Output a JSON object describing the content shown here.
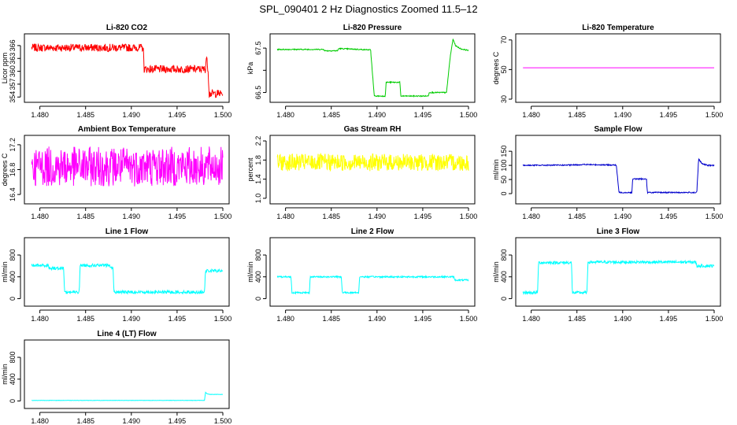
{
  "figure_title": "SPL_090401  2 Hz Diagnostics Zoomed 11.5–12",
  "chart_data": [
    {
      "type": "line",
      "title": "Li-820 CO2",
      "ylabel": "Licor ppm",
      "color": "#ff0000",
      "xlim": [
        1.479,
        1.5
      ],
      "ylim": [
        353.5,
        368
      ],
      "xticks": [
        1.48,
        1.485,
        1.49,
        1.495,
        1.5
      ],
      "xtick_labels": [
        "1.480",
        "1.485",
        "1.490",
        "1.495",
        "1.500"
      ],
      "yticks": [
        354,
        357,
        360,
        363,
        366
      ],
      "ytick_labels": [
        "354",
        "357",
        "360",
        "363",
        "366"
      ],
      "x": [
        1.4791,
        1.4913,
        1.4914,
        1.4981,
        1.4982,
        1.4984,
        1.4985,
        1.5
      ],
      "y": [
        365.5,
        365.5,
        360.5,
        360.5,
        363.5,
        360,
        354.8,
        354.8
      ],
      "noise": 0.9
    },
    {
      "type": "line",
      "title": "Li-820 Pressure",
      "ylabel": "kPa",
      "color": "#00cc00",
      "xlim": [
        1.479,
        1.5
      ],
      "ylim": [
        66.35,
        67.75
      ],
      "xticks": [
        1.48,
        1.485,
        1.49,
        1.495,
        1.5
      ],
      "xtick_labels": [
        "1.480",
        "1.485",
        "1.490",
        "1.495",
        "1.500"
      ],
      "yticks": [
        66.5,
        67.0,
        67.5
      ],
      "ytick_labels": [
        "66.5",
        "",
        "67.5"
      ],
      "x": [
        1.4791,
        1.4842,
        1.4843,
        1.4857,
        1.4858,
        1.4893,
        1.4897,
        1.4909,
        1.491,
        1.4925,
        1.4926,
        1.4956,
        1.4957,
        1.4976,
        1.498,
        1.4983,
        1.4986,
        1.4992,
        1.5
      ],
      "y": [
        67.47,
        67.47,
        67.44,
        67.44,
        67.49,
        67.46,
        66.42,
        66.42,
        66.73,
        66.73,
        66.42,
        66.42,
        66.5,
        66.5,
        67.3,
        67.7,
        67.55,
        67.48,
        67.45
      ],
      "noise": 0.012
    },
    {
      "type": "line",
      "title": "Li-820 Temperature",
      "ylabel": "degrees C",
      "color": "#ff00ff",
      "xlim": [
        1.479,
        1.5
      ],
      "ylim": [
        30,
        72
      ],
      "xticks": [
        1.48,
        1.485,
        1.49,
        1.495,
        1.5
      ],
      "xtick_labels": [
        "1.480",
        "1.485",
        "1.490",
        "1.495",
        "1.500"
      ],
      "yticks": [
        30,
        50,
        70
      ],
      "ytick_labels": [
        "30",
        "50",
        "70"
      ],
      "x": [
        1.4791,
        1.5
      ],
      "y": [
        51.2,
        51.2
      ],
      "noise": 0.0
    },
    {
      "type": "line",
      "title": "Ambient Box Temperature",
      "ylabel": "degrees C",
      "color": "#ff00ff",
      "xlim": [
        1.479,
        1.5
      ],
      "ylim": [
        16.3,
        17.3
      ],
      "xticks": [
        1.48,
        1.485,
        1.49,
        1.495,
        1.5
      ],
      "xtick_labels": [
        "1.480",
        "1.485",
        "1.490",
        "1.495",
        "1.500"
      ],
      "yticks": [
        16.4,
        16.8,
        17.2
      ],
      "ytick_labels": [
        "16.4",
        "16.8",
        "17.2"
      ],
      "x": [
        1.4791,
        1.5
      ],
      "y": [
        16.85,
        16.85
      ],
      "noise": 0.32
    },
    {
      "type": "line",
      "title": "Gas Stream RH",
      "ylabel": "percent",
      "color": "#ffff00",
      "xlim": [
        1.479,
        1.5
      ],
      "ylim": [
        0.95,
        2.25
      ],
      "xticks": [
        1.48,
        1.485,
        1.49,
        1.495,
        1.5
      ],
      "xtick_labels": [
        "1.480",
        "1.485",
        "1.490",
        "1.495",
        "1.500"
      ],
      "yticks": [
        1.0,
        1.4,
        1.8,
        2.2
      ],
      "ytick_labels": [
        "1.0",
        "1.4",
        "1.8",
        "2.2"
      ],
      "x": [
        1.4791,
        1.5
      ],
      "y": [
        1.75,
        1.75
      ],
      "noise": 0.18
    },
    {
      "type": "line",
      "title": "Sample Flow",
      "ylabel": "ml/min",
      "color": "#0000cc",
      "xlim": [
        1.479,
        1.5
      ],
      "ylim": [
        -25,
        195
      ],
      "xticks": [
        1.48,
        1.485,
        1.49,
        1.495,
        1.5
      ],
      "xtick_labels": [
        "1.480",
        "1.485",
        "1.490",
        "1.495",
        "1.500"
      ],
      "yticks": [
        0,
        50,
        100,
        150
      ],
      "ytick_labels": [
        "0",
        "50",
        "100",
        "150"
      ],
      "x": [
        1.4791,
        1.4842,
        1.4858,
        1.4893,
        1.4896,
        1.491,
        1.4911,
        1.4926,
        1.4927,
        1.4981,
        1.4983,
        1.4987,
        1.4993,
        1.5
      ],
      "y": [
        100,
        101,
        103,
        101,
        4,
        4,
        52,
        52,
        4,
        4,
        122,
        105,
        100,
        100
      ],
      "noise": 2
    },
    {
      "type": "line",
      "title": "Line 1 Flow",
      "ylabel": "ml/min",
      "color": "#00ffff",
      "xlim": [
        1.479,
        1.5
      ],
      "ylim": [
        -80,
        1060
      ],
      "xticks": [
        1.48,
        1.485,
        1.49,
        1.495,
        1.5
      ],
      "xtick_labels": [
        "1.480",
        "1.485",
        "1.490",
        "1.495",
        "1.500"
      ],
      "yticks": [
        0,
        400,
        800
      ],
      "ytick_labels": [
        "0",
        "400",
        "800"
      ],
      "x": [
        1.4791,
        1.4809,
        1.481,
        1.4826,
        1.4827,
        1.4843,
        1.4844,
        1.4876,
        1.4877,
        1.488,
        1.4881,
        1.498,
        1.4981,
        1.5
      ],
      "y": [
        610,
        610,
        560,
        560,
        120,
        120,
        610,
        610,
        570,
        570,
        120,
        120,
        510,
        510
      ],
      "noise": 28
    },
    {
      "type": "line",
      "title": "Line 2 Flow",
      "ylabel": "ml/min",
      "color": "#00ffff",
      "xlim": [
        1.479,
        1.5
      ],
      "ylim": [
        -80,
        1060
      ],
      "xticks": [
        1.48,
        1.485,
        1.49,
        1.495,
        1.5
      ],
      "xtick_labels": [
        "1.480",
        "1.485",
        "1.490",
        "1.495",
        "1.500"
      ],
      "yticks": [
        0,
        400,
        800
      ],
      "ytick_labels": [
        "0",
        "400",
        "800"
      ],
      "x": [
        1.4791,
        1.4806,
        1.4807,
        1.4826,
        1.4827,
        1.4861,
        1.4862,
        1.488,
        1.4881,
        1.4984,
        1.4985,
        1.5
      ],
      "y": [
        400,
        400,
        110,
        110,
        400,
        400,
        110,
        110,
        400,
        400,
        340,
        340
      ],
      "noise": 14
    },
    {
      "type": "line",
      "title": "Line 3 Flow",
      "ylabel": "ml/min",
      "color": "#00ffff",
      "xlim": [
        1.479,
        1.5
      ],
      "ylim": [
        -80,
        1060
      ],
      "xticks": [
        1.48,
        1.485,
        1.49,
        1.495,
        1.5
      ],
      "xtick_labels": [
        "1.480",
        "1.485",
        "1.490",
        "1.495",
        "1.500"
      ],
      "yticks": [
        0,
        400,
        800
      ],
      "ytick_labels": [
        "0",
        "400",
        "800"
      ],
      "x": [
        1.4791,
        1.4807,
        1.4808,
        1.4844,
        1.4845,
        1.4861,
        1.4862,
        1.498,
        1.4981,
        1.5
      ],
      "y": [
        110,
        110,
        660,
        660,
        110,
        110,
        670,
        670,
        600,
        600
      ],
      "noise": 26
    },
    {
      "type": "line",
      "title": "Line 4 (LT) Flow",
      "ylabel": "ml/min",
      "color": "#00ffff",
      "xlim": [
        1.479,
        1.5
      ],
      "ylim": [
        -80,
        1060
      ],
      "xticks": [
        1.48,
        1.485,
        1.49,
        1.495,
        1.5
      ],
      "xtick_labels": [
        "1.480",
        "1.485",
        "1.490",
        "1.495",
        "1.500"
      ],
      "yticks": [
        0,
        400,
        800
      ],
      "ytick_labels": [
        "0",
        "400",
        "800"
      ],
      "x": [
        1.4791,
        1.498,
        1.4981,
        1.4983,
        1.4986,
        1.5
      ],
      "y": [
        10,
        10,
        160,
        130,
        120,
        120
      ],
      "noise": 3
    }
  ]
}
